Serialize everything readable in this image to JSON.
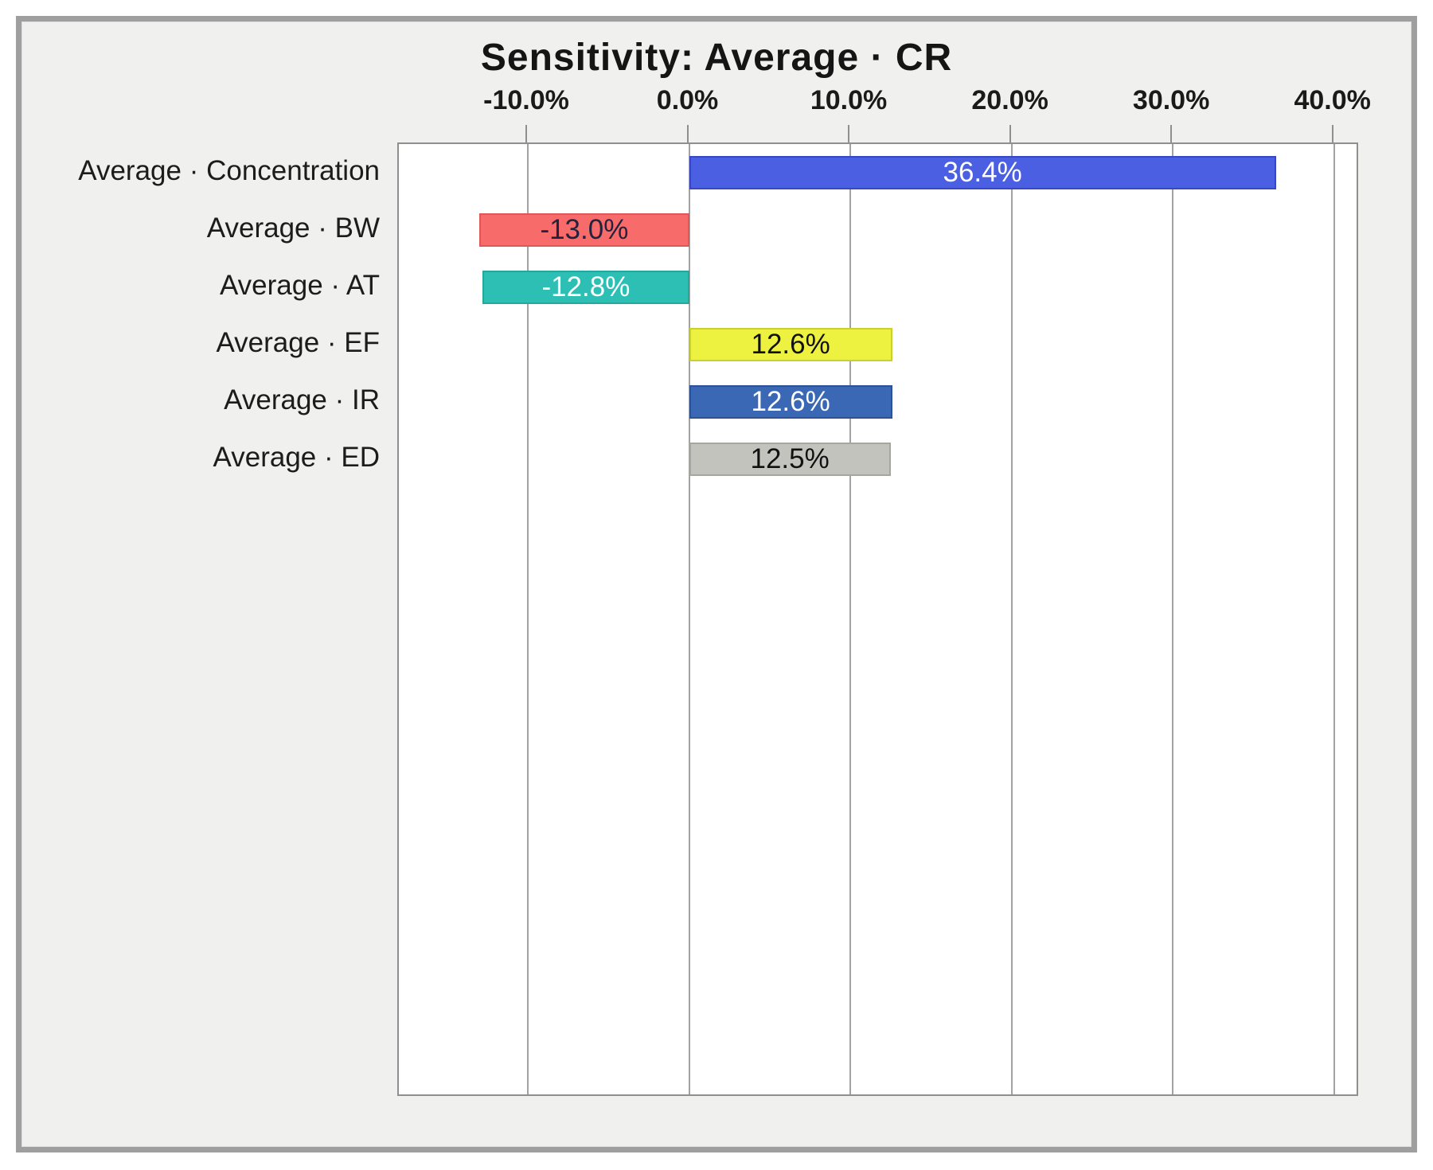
{
  "page": {
    "background": "#ffffff",
    "panel_background": "#f0f0ef",
    "frame_color": "#9f9f9f"
  },
  "chart_data": {
    "type": "bar",
    "orientation": "horizontal",
    "title": "Sensitivity: Average · CR",
    "categories": [
      "Average · Concentration",
      "Average · BW",
      "Average · AT",
      "Average · EF",
      "Average · IR",
      "Average · ED"
    ],
    "values": [
      36.4,
      -13.0,
      -12.8,
      12.6,
      12.6,
      12.5
    ],
    "value_labels": [
      "36.4%",
      "-13.0%",
      "-12.8%",
      "12.6%",
      "12.6%",
      "12.5%"
    ],
    "bar_colors": [
      "#4a5fe2",
      "#f76b6b",
      "#2ebfb4",
      "#ecf23f",
      "#3b68b5",
      "#c3c3be"
    ],
    "bar_border_colors": [
      "#3848c4",
      "#e05757",
      "#23a89d",
      "#c9d02f",
      "#2d5295",
      "#a6a69f"
    ],
    "value_label_colors": [
      "#ffffff",
      "#23233d",
      "#ffffff",
      "#111111",
      "#ffffff",
      "#111111"
    ],
    "x_ticks": {
      "values": [
        -10,
        0,
        10,
        20,
        30,
        40
      ],
      "labels": [
        "-10.0%",
        "0.0%",
        "10.0%",
        "20.0%",
        "30.0%",
        "40.0%"
      ]
    },
    "xlim": [
      -18,
      41.4
    ],
    "grid": "vertical",
    "legend": "none",
    "plot_background": "#ffffff",
    "gridline_color": "#a2a2a2",
    "axis_border_color": "#8f8f8f"
  }
}
